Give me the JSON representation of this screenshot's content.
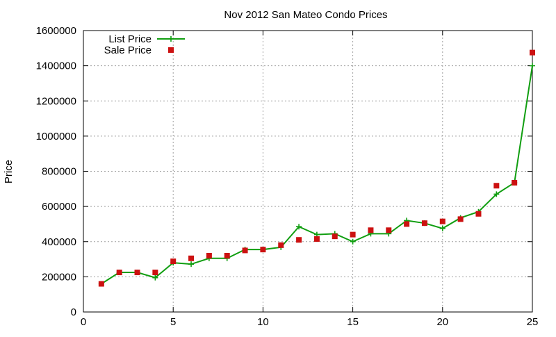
{
  "chart_data": {
    "type": "line",
    "title": "Nov 2012 San Mateo Condo Prices",
    "xlabel": "",
    "ylabel": "Price",
    "xlim": [
      0,
      25
    ],
    "ylim": [
      0,
      1600000
    ],
    "x_ticks": [
      0,
      5,
      10,
      15,
      20,
      25
    ],
    "y_ticks": [
      0,
      200000,
      400000,
      600000,
      800000,
      1000000,
      1200000,
      1400000,
      1600000
    ],
    "grid": true,
    "legend_position": "top-left",
    "x": [
      1,
      2,
      3,
      4,
      5,
      6,
      7,
      8,
      9,
      10,
      11,
      12,
      13,
      14,
      15,
      16,
      17,
      18,
      19,
      20,
      21,
      22,
      23,
      24,
      25
    ],
    "series": [
      {
        "name": "List Price",
        "style": "line-plus",
        "color": "#109e10",
        "values": [
          160000,
          225000,
          225000,
          195000,
          280000,
          272000,
          305000,
          305000,
          355000,
          355000,
          368000,
          485000,
          440000,
          445000,
          400000,
          445000,
          445000,
          520000,
          505000,
          475000,
          535000,
          570000,
          670000,
          735000,
          1400000
        ]
      },
      {
        "name": "Sale Price",
        "style": "square-points",
        "color": "#cc1111",
        "values": [
          160000,
          225000,
          225000,
          225000,
          288000,
          305000,
          320000,
          320000,
          350000,
          355000,
          380000,
          410000,
          415000,
          430000,
          440000,
          465000,
          465000,
          500000,
          505000,
          515000,
          528000,
          558000,
          718000,
          735000,
          1475000
        ]
      }
    ]
  }
}
